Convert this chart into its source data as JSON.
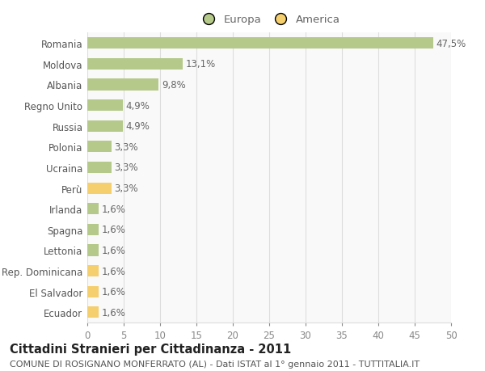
{
  "categories": [
    "Romania",
    "Moldova",
    "Albania",
    "Regno Unito",
    "Russia",
    "Polonia",
    "Ucraina",
    "Perù",
    "Irlanda",
    "Spagna",
    "Lettonia",
    "Rep. Dominicana",
    "El Salvador",
    "Ecuador"
  ],
  "values": [
    47.5,
    13.1,
    9.8,
    4.9,
    4.9,
    3.3,
    3.3,
    3.3,
    1.6,
    1.6,
    1.6,
    1.6,
    1.6,
    1.6
  ],
  "labels": [
    "47,5%",
    "13,1%",
    "9,8%",
    "4,9%",
    "4,9%",
    "3,3%",
    "3,3%",
    "3,3%",
    "1,6%",
    "1,6%",
    "1,6%",
    "1,6%",
    "1,6%",
    "1,6%"
  ],
  "colors": [
    "#b5c98a",
    "#b5c98a",
    "#b5c98a",
    "#b5c98a",
    "#b5c98a",
    "#b5c98a",
    "#b5c98a",
    "#f5ce6e",
    "#b5c98a",
    "#b5c98a",
    "#b5c98a",
    "#f5ce6e",
    "#f5ce6e",
    "#f5ce6e"
  ],
  "europa_color": "#b5c98a",
  "america_color": "#f5ce6e",
  "xlim": [
    0,
    50
  ],
  "xticks": [
    0,
    5,
    10,
    15,
    20,
    25,
    30,
    35,
    40,
    45,
    50
  ],
  "title": "Cittadini Stranieri per Cittadinanza - 2011",
  "subtitle": "COMUNE DI ROSIGNANO MONFERRATO (AL) - Dati ISTAT al 1° gennaio 2011 - TUTTITALIA.IT",
  "legend_europa": "Europa",
  "legend_america": "America",
  "bg_color": "#ffffff",
  "plot_bg_color": "#f9f9f9",
  "grid_color": "#dddddd",
  "bar_height": 0.55,
  "label_fontsize": 8.5,
  "title_fontsize": 10.5,
  "subtitle_fontsize": 8,
  "tick_fontsize": 8.5,
  "legend_fontsize": 9.5
}
